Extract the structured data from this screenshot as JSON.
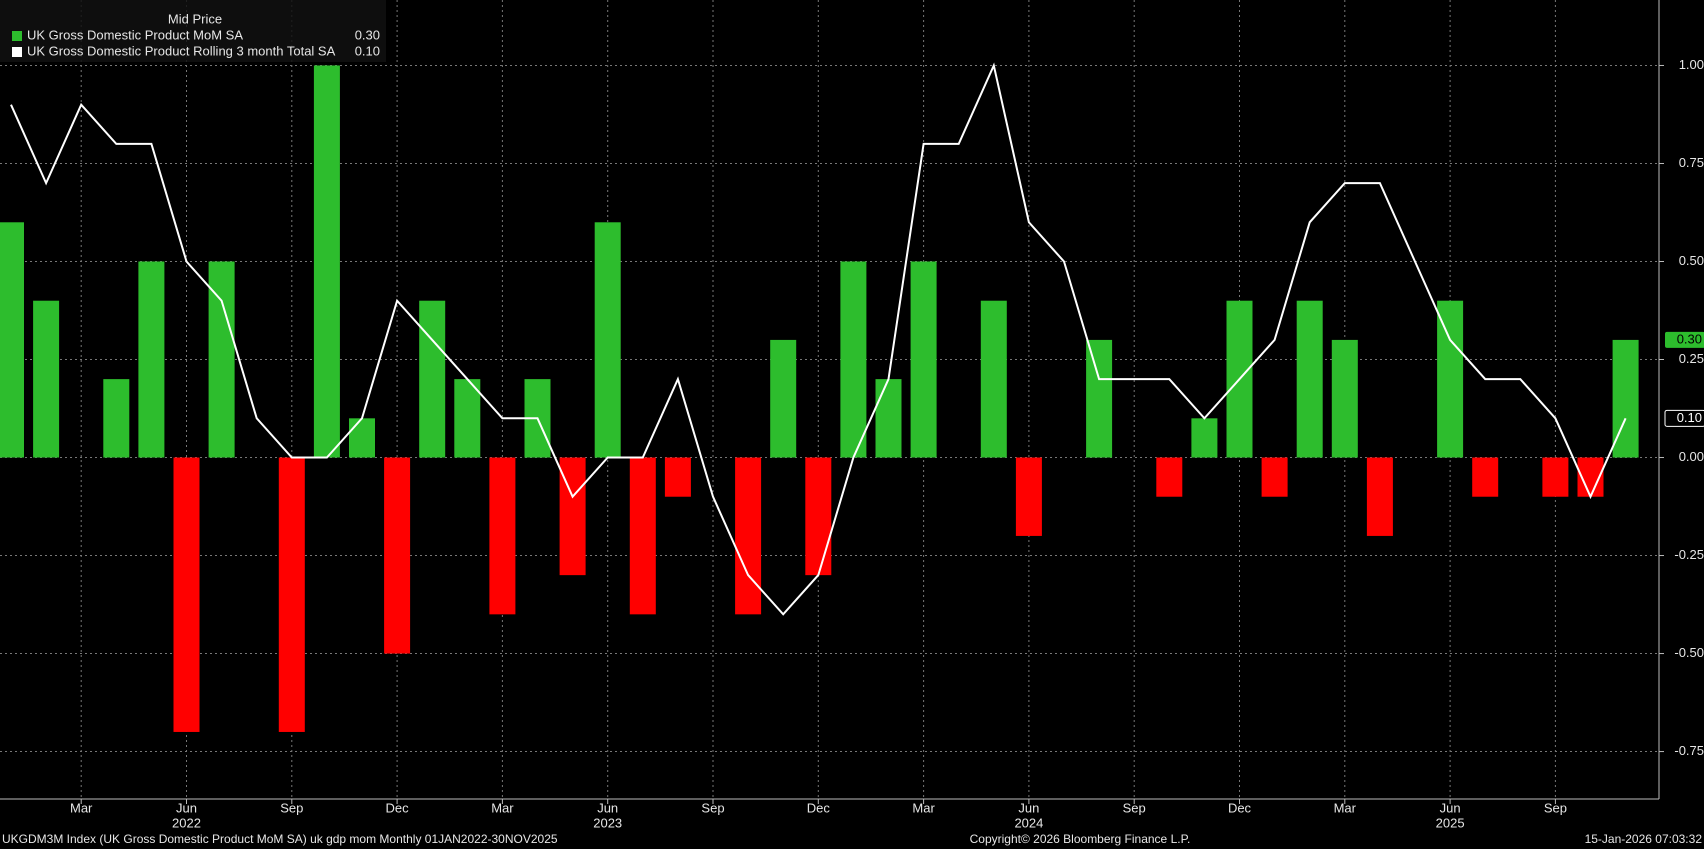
{
  "chart_data": {
    "type": "bar_line",
    "legend_title": "Mid Price",
    "categories": [
      null,
      null,
      "Mar",
      null,
      null,
      "Jun",
      null,
      null,
      "Sep",
      null,
      null,
      "Dec",
      null,
      null,
      "Mar",
      null,
      null,
      "Jun",
      null,
      null,
      "Sep",
      null,
      null,
      "Dec",
      null,
      null,
      "Mar",
      null,
      null,
      "Jun",
      null,
      null,
      "Sep",
      null,
      null,
      "Dec",
      null,
      null,
      "Mar",
      null,
      null,
      "Jun",
      null,
      null,
      "Sep",
      null,
      null
    ],
    "year_labels": [
      "2022",
      "2023",
      "2024",
      "2025"
    ],
    "series": [
      {
        "name": "UK Gross Domestic Product MoM SA",
        "type": "bar",
        "color": "#2dbd2d",
        "negative_color": "#ff0000",
        "last_label": "0.30",
        "values": [
          0.6,
          0.4,
          0.0,
          0.2,
          0.5,
          -0.7,
          0.5,
          0.0,
          -0.7,
          1.0,
          0.1,
          -0.5,
          0.4,
          0.2,
          -0.4,
          0.2,
          -0.3,
          0.6,
          -0.4,
          -0.1,
          0.0,
          -0.4,
          0.3,
          -0.3,
          0.5,
          0.2,
          0.5,
          0.0,
          0.4,
          -0.2,
          0.0,
          0.3,
          0.0,
          -0.1,
          0.1,
          0.4,
          -0.1,
          0.4,
          0.3,
          -0.2,
          0.0,
          0.4,
          -0.1,
          0.0,
          -0.1,
          -0.1,
          0.3
        ]
      },
      {
        "name": "UK Gross Domestic Product Rolling 3 month Total SA",
        "type": "line",
        "color": "#ffffff",
        "last_label": "0.10",
        "values": [
          0.9,
          0.7,
          0.9,
          0.8,
          0.8,
          0.5,
          0.4,
          0.1,
          0.0,
          0.0,
          0.1,
          0.4,
          0.3,
          0.2,
          0.1,
          0.1,
          -0.1,
          0.0,
          0.0,
          0.2,
          -0.1,
          -0.3,
          -0.4,
          -0.3,
          0.0,
          0.2,
          0.8,
          0.8,
          1.0,
          0.6,
          0.5,
          0.2,
          0.2,
          0.2,
          0.1,
          0.2,
          0.3,
          0.6,
          0.7,
          0.7,
          0.5,
          0.3,
          0.2,
          0.2,
          0.1,
          -0.1,
          0.1
        ]
      }
    ],
    "ylim": [
      -0.871,
      1.167
    ],
    "yticks": [
      {
        "value": 1,
        "label": "1.00"
      },
      {
        "value": 0.75,
        "label": "0.75"
      },
      {
        "value": 0.5,
        "label": "0.50"
      },
      {
        "value": 0.25,
        "label": "0.25"
      },
      {
        "value": 0,
        "label": "0.00"
      },
      {
        "value": -0.25,
        "label": "-0.25"
      },
      {
        "value": -0.5,
        "label": "-0.50"
      },
      {
        "value": -0.75,
        "label": "-0.75"
      }
    ],
    "grid": true,
    "footer_left": "UKGDM3M Index (UK Gross Domestic Product MoM SA) uk gdp mom Monthly 01JAN2022-30NOV2025",
    "footer_center": "Copyright© 2026 Bloomberg Finance L.P.",
    "footer_right": "15-Jan-2026 07:03:32"
  }
}
